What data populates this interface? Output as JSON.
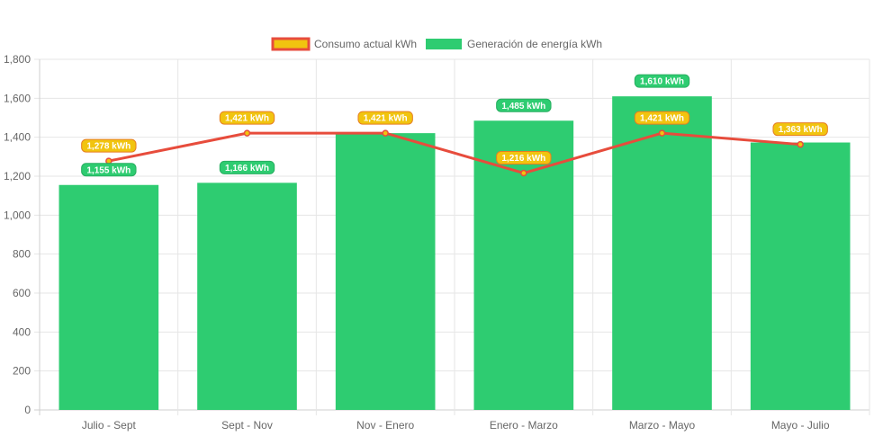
{
  "chart_data": {
    "type": "bar",
    "title": "",
    "xlabel": "",
    "ylabel": "",
    "categories": [
      "Julio - Sept",
      "Sept - Nov",
      "Nov - Enero",
      "Enero - Marzo",
      "Marzo - Mayo",
      "Mayo - Julio"
    ],
    "ylim": [
      0,
      1800
    ],
    "y_ticks": [
      0,
      200,
      400,
      600,
      800,
      1000,
      1200,
      1400,
      1600,
      1800
    ],
    "y_tick_labels": [
      "0",
      "200",
      "400",
      "600",
      "800",
      "1,000",
      "1,200",
      "1,400",
      "1,600",
      "1,800"
    ],
    "grid": true,
    "legend_position": "top-center",
    "series": [
      {
        "name": "Consumo actual kWh",
        "type": "line",
        "values": [
          1278,
          1421,
          1421,
          1216,
          1421,
          1363
        ],
        "labels": [
          "1,278 kWh",
          "1,421 kWh",
          "1,421 kWh",
          "1,216 kWh",
          "1,421 kWh",
          "1,363 kWh"
        ],
        "color": "#e74c3c",
        "fill_color": "#f1c40f"
      },
      {
        "name": "Generación de energía kWh",
        "type": "bar",
        "values": [
          1155,
          1166,
          1421,
          1485,
          1610,
          1373
        ],
        "labels": [
          "1,155 kWh",
          "1,166 kWh",
          "",
          "1,485 kWh",
          "1,610 kWh",
          ""
        ],
        "color": "#2ecc71"
      }
    ]
  }
}
